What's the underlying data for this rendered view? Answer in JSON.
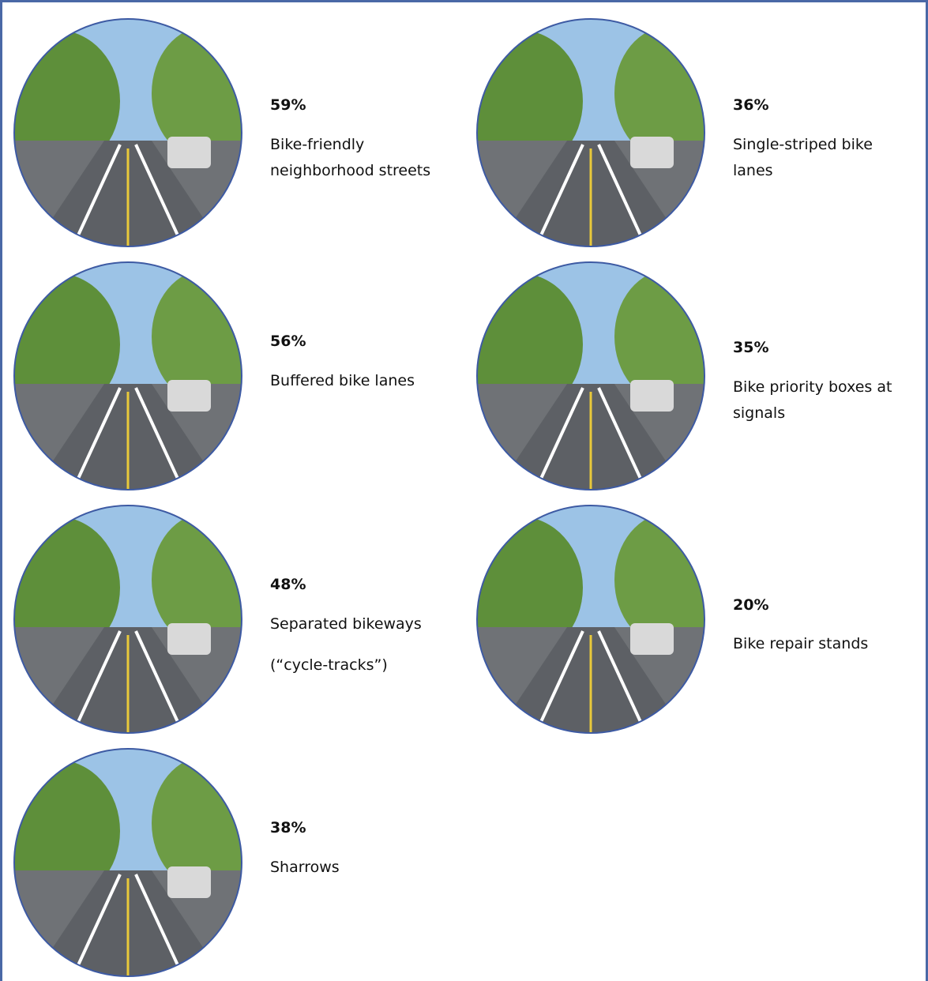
{
  "items": [
    {
      "percent": "59%",
      "label": [
        "Bike-friendly",
        "neighborhood streets"
      ]
    },
    {
      "percent": "36%",
      "label": [
        "Single-striped bike",
        "lanes"
      ]
    },
    {
      "percent": "56%",
      "label": [
        "Buffered bike lanes"
      ]
    },
    {
      "percent": "35%",
      "label": [
        "Bike priority boxes at",
        "signals"
      ]
    },
    {
      "percent": "48%",
      "label": [
        "Separated bikeways",
        "(“cycle-tracks”)"
      ]
    },
    {
      "percent": "20%",
      "label": [
        "Bike repair stands"
      ]
    },
    {
      "percent": "38%",
      "label": [
        "Sharrows"
      ]
    }
  ]
}
